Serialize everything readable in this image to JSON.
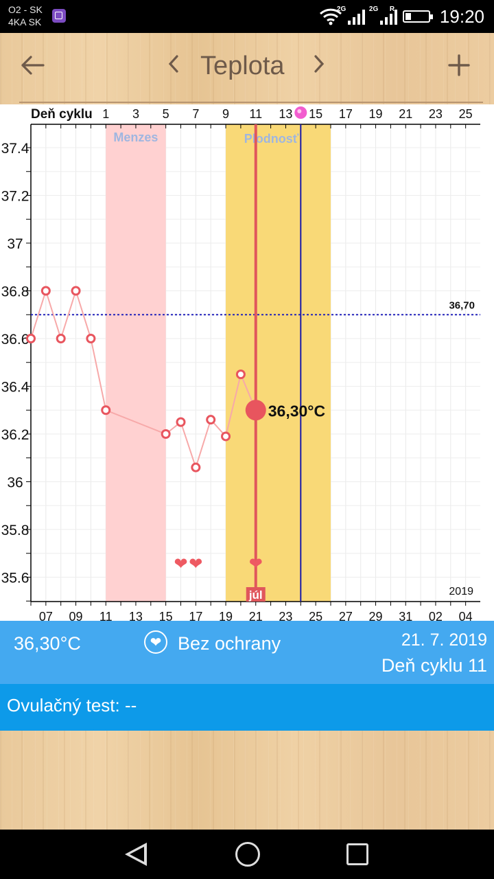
{
  "status_bar": {
    "carrier_line1": "O2 - SK",
    "carrier_line2": "4KA SK",
    "gallery_icon": "gallery-icon",
    "net1": "2G",
    "net2": "2G",
    "roaming": "R",
    "time": "19:20"
  },
  "header": {
    "title": "Teplota",
    "back_icon": "arrow-left-icon",
    "prev_icon": "chevron-left-icon",
    "next_icon": "chevron-right-icon",
    "add_icon": "plus-icon"
  },
  "chart_data": {
    "type": "line",
    "top_axis_label": "Deň cyklu",
    "top_ticks": [
      "1",
      "3",
      "5",
      "7",
      "9",
      "11",
      "13",
      "15",
      "17",
      "19",
      "21",
      "23",
      "25"
    ],
    "bottom_ticks": [
      "07",
      "09",
      "11",
      "13",
      "15",
      "17",
      "19",
      "21",
      "23",
      "25",
      "27",
      "29",
      "31",
      "02",
      "04"
    ],
    "y_ticks": [
      "37.4",
      "37.2",
      "37",
      "36.8",
      "36.6",
      "36.4",
      "36.2",
      "36",
      "35.8",
      "35.6"
    ],
    "ylim": [
      35.5,
      37.5
    ],
    "x_date_range": [
      "2019-07-06",
      "2019-08-05"
    ],
    "year_label": "2019",
    "month_label": "júl",
    "series": [
      {
        "points": [
          {
            "date": "2019-07-06",
            "value": 36.6
          },
          {
            "date": "2019-07-07",
            "value": 36.8
          },
          {
            "date": "2019-07-08",
            "value": 36.6
          },
          {
            "date": "2019-07-09",
            "value": 36.8
          },
          {
            "date": "2019-07-10",
            "value": 36.6
          },
          {
            "date": "2019-07-11",
            "value": 36.3
          },
          {
            "date": "2019-07-15",
            "value": 36.2
          },
          {
            "date": "2019-07-16",
            "value": 36.25
          },
          {
            "date": "2019-07-17",
            "value": 36.06
          },
          {
            "date": "2019-07-18",
            "value": 36.26
          },
          {
            "date": "2019-07-19",
            "value": 36.19
          },
          {
            "date": "2019-07-20",
            "value": 36.45
          },
          {
            "date": "2019-07-21",
            "value": 36.3
          }
        ]
      }
    ],
    "coverline": {
      "value": 36.7,
      "label": "36,70"
    },
    "menses": {
      "label": "Menzes",
      "start": "2019-07-11",
      "end": "2019-07-15"
    },
    "fertility": {
      "label": "Plodnosť",
      "start": "2019-07-19",
      "end": "2019-07-26"
    },
    "ovulation_date": "2019-07-24",
    "selected": {
      "date": "2019-07-21",
      "value": 36.3,
      "label": "36,30°C"
    },
    "heart_dates": [
      "2019-07-16",
      "2019-07-17",
      "2019-07-21"
    ],
    "colors": {
      "line": "#f7a9a9",
      "marker": "#e8555e",
      "menses": "#ffd1d1",
      "fertility": "#f9d977",
      "coverline": "#2222bb",
      "ovulation": "#1a1aa8",
      "selected_line": "#e0575c"
    }
  },
  "info": {
    "temperature": "36,30°C",
    "heart_icon": "heart-icon",
    "protection": "Bez ochrany",
    "date": "21. 7. 2019",
    "cycle_day": "Deň cyklu 11"
  },
  "ovulation_test": {
    "text": "Ovulačný test: --"
  },
  "nav": {
    "back_icon": "triangle-back-icon",
    "home_icon": "circle-home-icon",
    "recent_icon": "square-recent-icon"
  }
}
